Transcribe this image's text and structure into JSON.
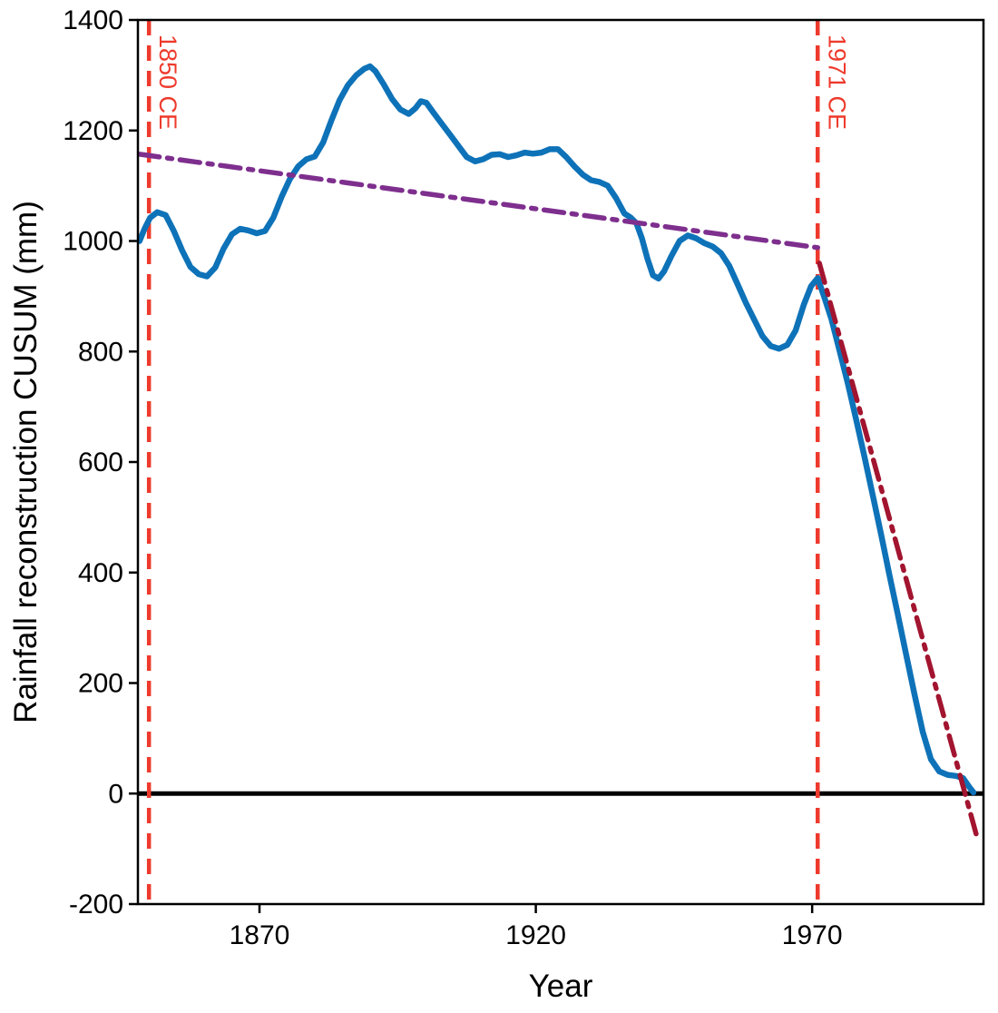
{
  "chart_data": {
    "type": "line",
    "title": "",
    "xlabel": "Year",
    "ylabel": "Rainfall reconstruction CUSUM (mm)",
    "xlim": [
      1848,
      2001
    ],
    "ylim": [
      -200,
      1400
    ],
    "x_ticks": [
      1870,
      1920,
      1970
    ],
    "y_ticks": [
      -200,
      0,
      200,
      400,
      600,
      800,
      1000,
      1200,
      1400
    ],
    "grid": false,
    "box": true,
    "axis_color": "#000000",
    "tick_font_size": 30,
    "label_font_size": 35,
    "annotation_font_size": 27,
    "series": [
      {
        "name": "rainfall-cusum",
        "color": "#0e72b8",
        "width": 6.5,
        "dash": "solid",
        "points": [
          [
            1848.3,
            1000
          ],
          [
            1849.2,
            1022
          ],
          [
            1850.2,
            1042
          ],
          [
            1851.5,
            1052
          ],
          [
            1853,
            1047
          ],
          [
            1854.5,
            1018
          ],
          [
            1856,
            983
          ],
          [
            1857.5,
            953
          ],
          [
            1859,
            940
          ],
          [
            1860.5,
            936
          ],
          [
            1862,
            952
          ],
          [
            1863.5,
            986
          ],
          [
            1865,
            1012
          ],
          [
            1866.5,
            1022
          ],
          [
            1868,
            1019
          ],
          [
            1869.5,
            1014
          ],
          [
            1871,
            1018
          ],
          [
            1872.5,
            1042
          ],
          [
            1874,
            1080
          ],
          [
            1875.5,
            1112
          ],
          [
            1877,
            1135
          ],
          [
            1878.5,
            1148
          ],
          [
            1880,
            1153
          ],
          [
            1881.5,
            1178
          ],
          [
            1883,
            1218
          ],
          [
            1884.5,
            1255
          ],
          [
            1886,
            1282
          ],
          [
            1887.5,
            1300
          ],
          [
            1889,
            1312
          ],
          [
            1890,
            1316
          ],
          [
            1891,
            1307
          ],
          [
            1892.5,
            1283
          ],
          [
            1894,
            1257
          ],
          [
            1895.5,
            1238
          ],
          [
            1897,
            1230
          ],
          [
            1898.2,
            1240
          ],
          [
            1899.2,
            1253
          ],
          [
            1900.2,
            1250
          ],
          [
            1901.5,
            1232
          ],
          [
            1903,
            1212
          ],
          [
            1904.5,
            1192
          ],
          [
            1906,
            1172
          ],
          [
            1907.5,
            1152
          ],
          [
            1909,
            1144
          ],
          [
            1910.5,
            1148
          ],
          [
            1912,
            1156
          ],
          [
            1913.5,
            1157
          ],
          [
            1915,
            1152
          ],
          [
            1916.5,
            1155
          ],
          [
            1918,
            1160
          ],
          [
            1919.5,
            1158
          ],
          [
            1921,
            1160
          ],
          [
            1922.5,
            1166
          ],
          [
            1924,
            1166
          ],
          [
            1925.5,
            1152
          ],
          [
            1927,
            1135
          ],
          [
            1928.5,
            1120
          ],
          [
            1930,
            1110
          ],
          [
            1931.5,
            1107
          ],
          [
            1933,
            1100
          ],
          [
            1934.5,
            1078
          ],
          [
            1936,
            1050
          ],
          [
            1937.2,
            1042
          ],
          [
            1938.2,
            1032
          ],
          [
            1939.2,
            1005
          ],
          [
            1940.2,
            968
          ],
          [
            1941.2,
            938
          ],
          [
            1942.2,
            932
          ],
          [
            1943.2,
            945
          ],
          [
            1944.5,
            972
          ],
          [
            1946,
            1000
          ],
          [
            1947.5,
            1010
          ],
          [
            1949,
            1005
          ],
          [
            1950.5,
            996
          ],
          [
            1952,
            990
          ],
          [
            1953.5,
            978
          ],
          [
            1955,
            955
          ],
          [
            1956.5,
            922
          ],
          [
            1958,
            888
          ],
          [
            1959.5,
            858
          ],
          [
            1961,
            828
          ],
          [
            1962.5,
            810
          ],
          [
            1964,
            805
          ],
          [
            1965.5,
            812
          ],
          [
            1967,
            838
          ],
          [
            1968.5,
            885
          ],
          [
            1969.8,
            918
          ],
          [
            1971,
            933
          ],
          [
            1972.2,
            898
          ],
          [
            1973.5,
            858
          ],
          [
            1975,
            800
          ],
          [
            1976.5,
            740
          ],
          [
            1978,
            675
          ],
          [
            1979.5,
            608
          ],
          [
            1981,
            538
          ],
          [
            1982.5,
            468
          ],
          [
            1984,
            395
          ],
          [
            1985.5,
            324
          ],
          [
            1987,
            252
          ],
          [
            1988.5,
            180
          ],
          [
            1990,
            112
          ],
          [
            1991.5,
            62
          ],
          [
            1993,
            40
          ],
          [
            1994.5,
            34
          ],
          [
            1996,
            32
          ],
          [
            1997.3,
            28
          ],
          [
            1998.4,
            12
          ],
          [
            1999.2,
            2
          ]
        ]
      },
      {
        "name": "pre-1971-trend",
        "color": "#7E2F8E",
        "width": 5.5,
        "dash": "dashdot",
        "points": [
          [
            1848.3,
            1157
          ],
          [
            1971,
            988
          ]
        ]
      },
      {
        "name": "post-1971-trend",
        "color": "#A2142F",
        "width": 5.5,
        "dash": "dashdot",
        "points": [
          [
            1971.3,
            960
          ],
          [
            2000,
            -85
          ]
        ]
      }
    ],
    "reference_lines": [
      {
        "name": "zero-line",
        "orientation": "horizontal",
        "value": 0,
        "color": "#000000",
        "width": 5,
        "dash": "solid",
        "label": ""
      },
      {
        "name": "changepoint-1850",
        "orientation": "vertical",
        "value": 1850,
        "color": "#ee3a2c",
        "width": 4.5,
        "dash": "dashed",
        "label": "1850 CE"
      },
      {
        "name": "changepoint-1971",
        "orientation": "vertical",
        "value": 1971,
        "color": "#ee3a2c",
        "width": 4.5,
        "dash": "dashed",
        "label": "1971 CE"
      }
    ]
  }
}
